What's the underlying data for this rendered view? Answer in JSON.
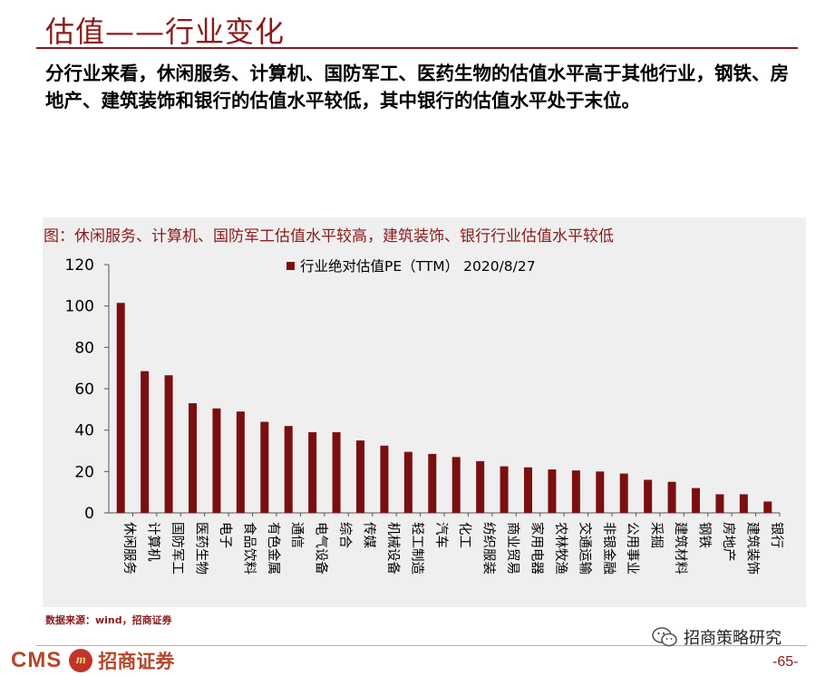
{
  "slide": {
    "title": "估值——行业变化",
    "body": "分行业来看，休闲服务、计算机、国防军工、医药生物的估值水平高于其他行业，钢铁、房地产、建筑装饰和银行的估值水平较低，其中银行的估值水平处于末位。",
    "chart_caption": "图：休闲服务、计算机、国防军工估值水平较高，建筑装饰、银行行业估值水平较低",
    "source": "数据来源：wind，招商证券",
    "page_number": "-65-",
    "wechat_label": "招商策略研究",
    "logo": {
      "cms": "CMS",
      "cn": "招商证券"
    },
    "accent_color": "#8b1a1a"
  },
  "chart_data": {
    "type": "bar",
    "title": "",
    "xlabel": "",
    "ylabel": "",
    "ylim": [
      0,
      120
    ],
    "yticks": [
      0,
      20,
      40,
      60,
      80,
      100,
      120
    ],
    "legend_position": "top",
    "bar_color": "#7b0f0f",
    "categories": [
      "休闲服务",
      "计算机",
      "国防军工",
      "医药生物",
      "电子",
      "食品饮料",
      "有色金属",
      "通信",
      "电气设备",
      "综合",
      "传媒",
      "机械设备",
      "轻工制造",
      "汽车",
      "化工",
      "纺织服装",
      "商业贸易",
      "家用电器",
      "农林牧渔",
      "交通运输",
      "非银金融",
      "公用事业",
      "采掘",
      "建筑材料",
      "钢铁",
      "房地产",
      "建筑装饰",
      "银行"
    ],
    "series": [
      {
        "name": "行业绝对估值PE（TTM） 2020/8/27",
        "values": [
          101.5,
          68.5,
          66.5,
          53,
          50.5,
          49,
          44,
          42,
          39,
          39,
          35,
          32.5,
          29.5,
          28.5,
          27,
          25,
          22.5,
          22,
          21,
          20.5,
          20,
          19,
          16,
          15,
          12,
          9,
          9,
          5.5
        ]
      }
    ]
  }
}
